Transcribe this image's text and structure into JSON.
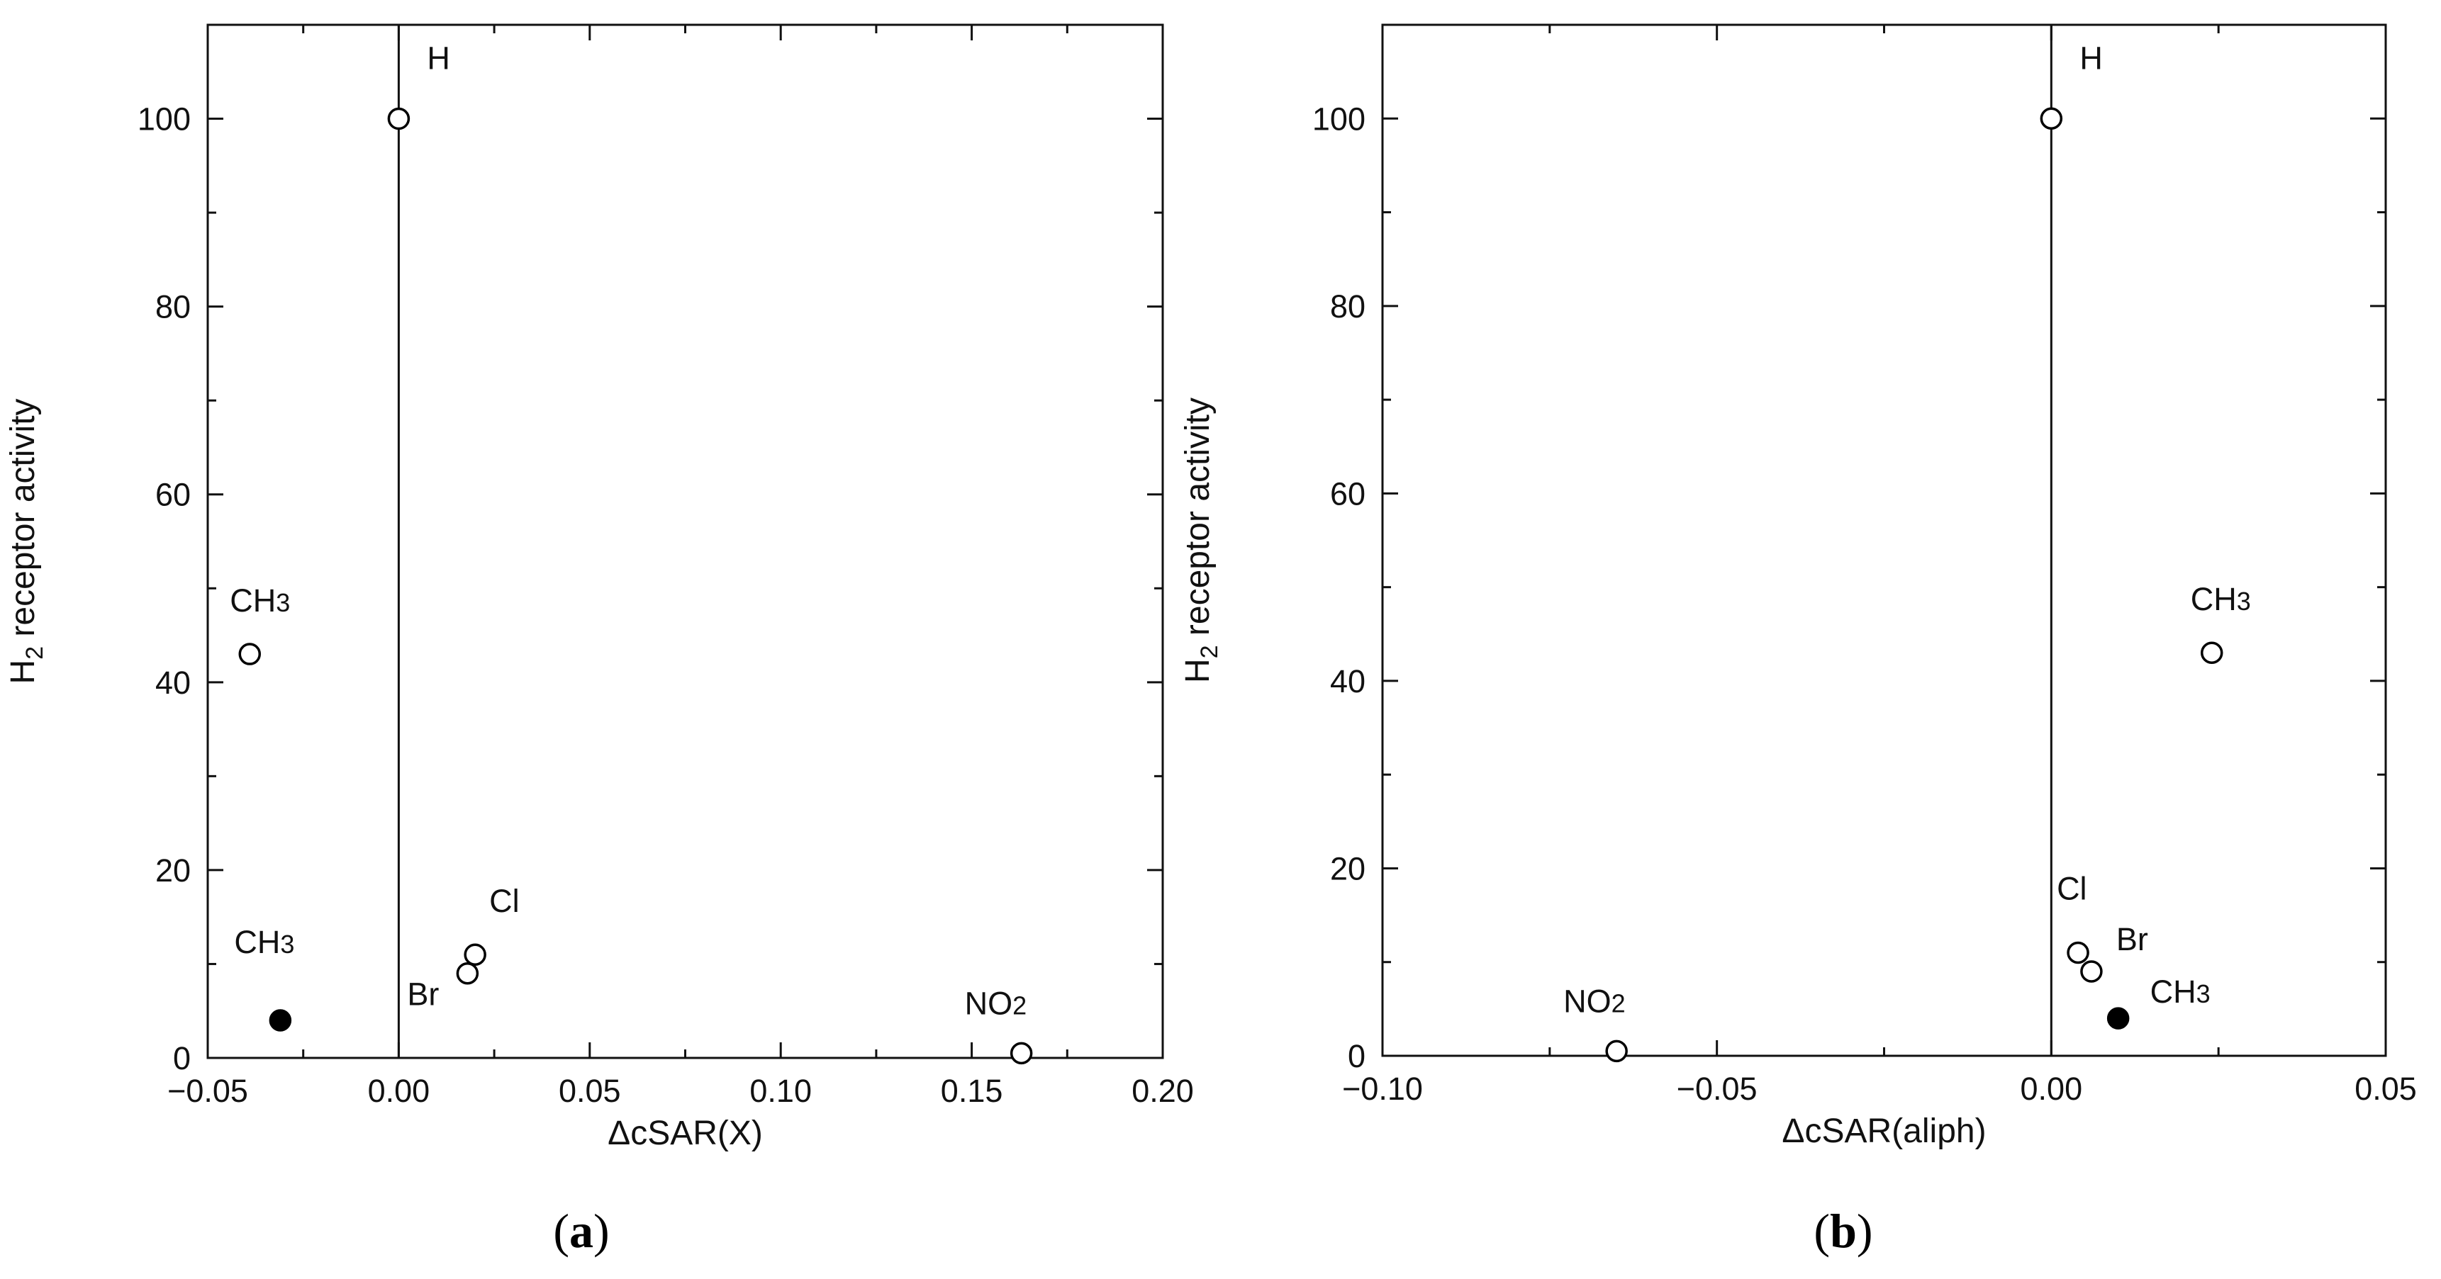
{
  "chart_data": [
    {
      "type": "scatter",
      "panel": "(a)",
      "panel_letter": "a",
      "xlabel": "ΔcSAR(X)",
      "ylabel": "H2 receptor activity",
      "xlim": [
        -0.05,
        0.2
      ],
      "ylim": [
        0,
        110
      ],
      "xticks": [
        -0.05,
        0.0,
        0.05,
        0.1,
        0.15,
        0.2
      ],
      "xtick_labels": [
        "−0.05",
        "0.00",
        "0.05",
        "0.10",
        "0.15",
        "0.20"
      ],
      "yticks": [
        0,
        20,
        40,
        60,
        80,
        100
      ],
      "ytick_labels": [
        "0",
        "20",
        "40",
        "60",
        "80",
        "100"
      ],
      "vline_x": 0,
      "grid": false,
      "points": [
        {
          "x": 0.0,
          "y": 100,
          "label": "H",
          "filled": false
        },
        {
          "x": -0.039,
          "y": 43,
          "label": "CH3",
          "filled": false
        },
        {
          "x": -0.031,
          "y": 4,
          "label": "CH3",
          "filled": true
        },
        {
          "x": 0.018,
          "y": 9,
          "label": "Br",
          "filled": false
        },
        {
          "x": 0.02,
          "y": 11,
          "label": "Cl",
          "filled": false
        },
        {
          "x": 0.163,
          "y": 0.5,
          "label": "NO2",
          "filled": false
        }
      ]
    },
    {
      "type": "scatter",
      "panel": "(b)",
      "panel_letter": "b",
      "xlabel": "ΔcSAR(aliph)",
      "ylabel": "H2 receptor activity",
      "xlim": [
        -0.1,
        0.05
      ],
      "ylim": [
        0,
        110
      ],
      "xticks": [
        -0.1,
        -0.05,
        0.0,
        0.05
      ],
      "xtick_labels": [
        "−0.10",
        "−0.05",
        "0.00",
        "0.05"
      ],
      "yticks": [
        0,
        20,
        40,
        60,
        80,
        100
      ],
      "ytick_labels": [
        "0",
        "20",
        "40",
        "60",
        "80",
        "100"
      ],
      "vline_x": 0,
      "grid": false,
      "points": [
        {
          "x": 0.0,
          "y": 100,
          "label": "H",
          "filled": false
        },
        {
          "x": 0.024,
          "y": 43,
          "label": "CH3",
          "filled": false
        },
        {
          "x": 0.004,
          "y": 11,
          "label": "Cl",
          "filled": false
        },
        {
          "x": 0.006,
          "y": 9,
          "label": "Br",
          "filled": false
        },
        {
          "x": 0.01,
          "y": 4,
          "label": "CH3",
          "filled": true
        },
        {
          "x": -0.065,
          "y": 0.5,
          "label": "NO2",
          "filled": false
        }
      ]
    }
  ]
}
